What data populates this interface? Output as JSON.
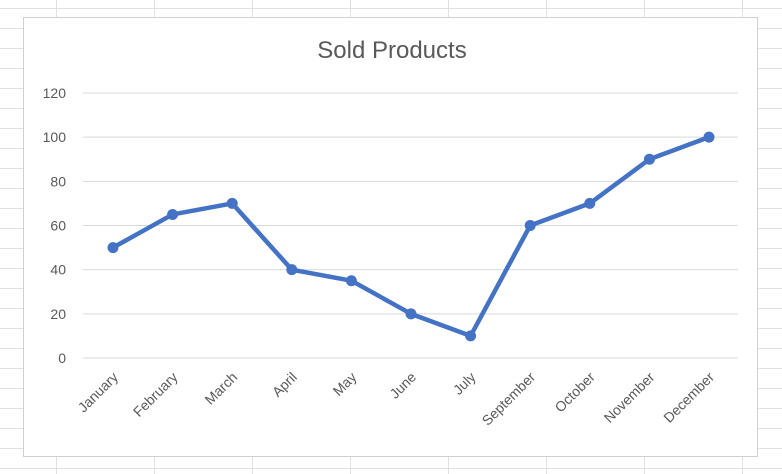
{
  "chart_data": {
    "type": "line",
    "title": "Sold Products",
    "categories": [
      "January",
      "February",
      "March",
      "April",
      "May",
      "June",
      "July",
      "September",
      "October",
      "November",
      "December"
    ],
    "series": [
      {
        "values": [
          50,
          65,
          70,
          40,
          35,
          20,
          10,
          60,
          70,
          90,
          100
        ]
      }
    ],
    "ylim": [
      0,
      120
    ],
    "yticks": [
      0,
      20,
      40,
      60,
      80,
      100,
      120
    ],
    "grid": true,
    "legend": "none",
    "colors": {
      "series": "#4472c4",
      "grid": "#d9d9d9",
      "text": "#595959"
    }
  }
}
